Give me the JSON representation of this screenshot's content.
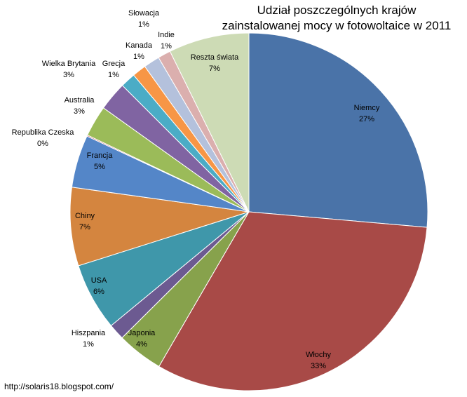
{
  "chart_data": {
    "type": "pie",
    "title_line1": "Udział poszczególnych krajów",
    "title_line2": "zainstalowanej mocy w fotowoltaice w 2011",
    "start_angle_deg": 0,
    "direction": "clockwise",
    "slices": [
      {
        "label": "Niemcy",
        "pct_label": "27%",
        "value": 27.2,
        "color": "#4a73a8"
      },
      {
        "label": "Włochy",
        "pct_label": "33%",
        "value": 33.0,
        "color": "#a84a47"
      },
      {
        "label": "Japonia",
        "pct_label": "4%",
        "value": 4.3,
        "color": "#87a24c"
      },
      {
        "label": "Hiszpania",
        "pct_label": "1%",
        "value": 1.5,
        "color": "#6c5a91"
      },
      {
        "label": "USA",
        "pct_label": "6%",
        "value": 6.3,
        "color": "#3f97aa"
      },
      {
        "label": "Chiny",
        "pct_label": "7%",
        "value": 7.3,
        "color": "#d4853f"
      },
      {
        "label": "Francja",
        "pct_label": "5%",
        "value": 4.9,
        "color": "#5486c8"
      },
      {
        "label": "Republika Czeska",
        "pct_label": "0%",
        "value": 0.1,
        "color": "#c0504d"
      },
      {
        "label": "Australia",
        "pct_label": "3%",
        "value": 2.9,
        "color": "#9bbb59"
      },
      {
        "label": "Wielka Brytania",
        "pct_label": "3%",
        "value": 2.7,
        "color": "#8064a2"
      },
      {
        "label": "Grecja",
        "pct_label": "1%",
        "value": 1.4,
        "color": "#4bacc6"
      },
      {
        "label": "Kanada",
        "pct_label": "1%",
        "value": 1.3,
        "color": "#f79646"
      },
      {
        "label": "Indie",
        "pct_label": "1%",
        "value": 1.5,
        "color": "#b4c1dc"
      },
      {
        "label": "Słowacja",
        "pct_label": "1%",
        "value": 1.2,
        "color": "#dbafae"
      },
      {
        "label": "Reszta świata",
        "pct_label": "7%",
        "value": 7.5,
        "color": "#cddbb5"
      }
    ]
  },
  "footer": {
    "url": "http://solaris18.blogspot.com/"
  }
}
